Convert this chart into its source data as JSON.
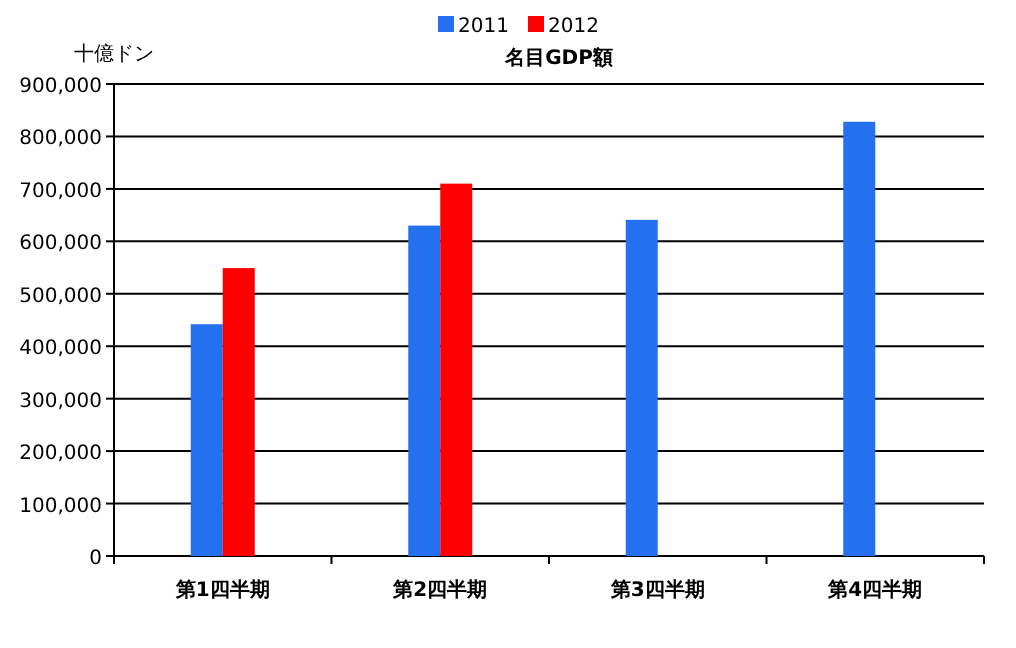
{
  "chart_data": {
    "type": "bar",
    "title": "名目GDP額",
    "ylabel": "十億ドン",
    "categories": [
      "第1四半期",
      "第2四半期",
      "第3四半期",
      "第4四半期"
    ],
    "series": [
      {
        "name": "2011",
        "color": "#2470ee",
        "values": [
          442000,
          630000,
          641000,
          828000
        ]
      },
      {
        "name": "2012",
        "color": "#ff0000",
        "values": [
          549000,
          710000,
          null,
          null
        ]
      }
    ],
    "ylim": [
      0,
      900000
    ],
    "yticks": [
      {
        "value": 0,
        "label": "0"
      },
      {
        "value": 100000,
        "label": "100,000"
      },
      {
        "value": 200000,
        "label": "200,000"
      },
      {
        "value": 300000,
        "label": "300,000"
      },
      {
        "value": 400000,
        "label": "400,000"
      },
      {
        "value": 500000,
        "label": "500,000"
      },
      {
        "value": 600000,
        "label": "600,000"
      },
      {
        "value": 700000,
        "label": "700,000"
      },
      {
        "value": 800000,
        "label": "800,000"
      },
      {
        "value": 900000,
        "label": "900,000"
      }
    ],
    "grid": "y",
    "legend": "top"
  }
}
